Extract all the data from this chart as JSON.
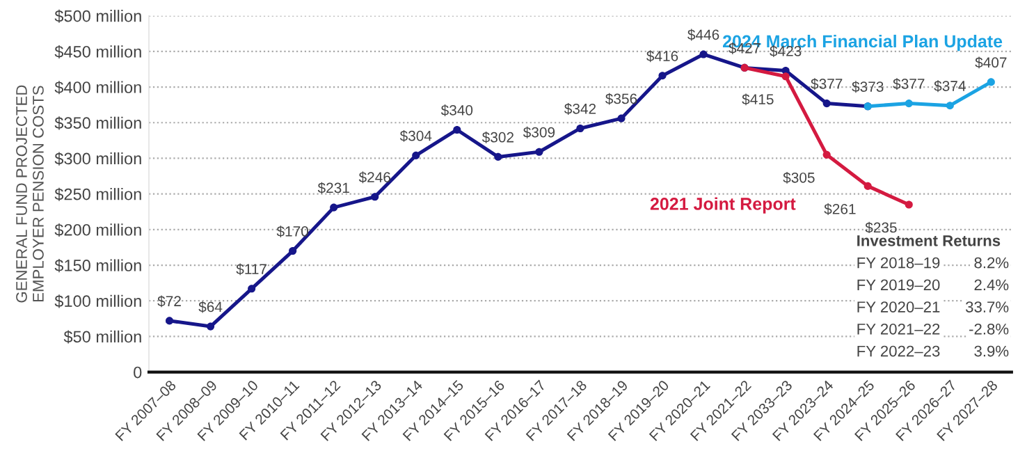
{
  "chart_data": {
    "type": "line",
    "ylabel": "GENERAL FUND PROJECTED\nEMPLOYER PENSION COSTS",
    "categories": [
      "FY 2007–08",
      "FY 2008–09",
      "FY 2009–10",
      "FY 2010–11",
      "FY 2011–12",
      "FY 2012–13",
      "FY 2013–14",
      "FY 2014–15",
      "FY 2015–16",
      "FY 2016–17",
      "FY 2017–18",
      "FY 2018–19",
      "FY 2019–20",
      "FY 2020–21",
      "FY 2021–22",
      "FY 2033–23",
      "FY 2023–24",
      "FY 2024–25",
      "FY 2025–26",
      "FY 2026–27",
      "FY 2027–28"
    ],
    "series": [
      {
        "color": "#16168a",
        "values": [
          72,
          64,
          117,
          170,
          231,
          246,
          304,
          340,
          302,
          309,
          342,
          356,
          416,
          446,
          427,
          423,
          377,
          373,
          null,
          null,
          null
        ],
        "value_labels": [
          "$72",
          "$64",
          "$117",
          "$170",
          "$231",
          "$246",
          "$304",
          "$340",
          "$302",
          "$309",
          "$342",
          "$356",
          "$416",
          "$446",
          "$427",
          "$423",
          "$377",
          null,
          null,
          null,
          null
        ]
      },
      {
        "name": "2021 Joint Report",
        "color": "#d41a40",
        "values": [
          null,
          null,
          null,
          null,
          null,
          null,
          null,
          null,
          null,
          null,
          null,
          null,
          null,
          null,
          427,
          415,
          305,
          261,
          235,
          null,
          null
        ],
        "value_labels": [
          null,
          null,
          null,
          null,
          null,
          null,
          null,
          null,
          null,
          null,
          null,
          null,
          null,
          null,
          null,
          "$415",
          "$305",
          "$261",
          "$235",
          null,
          null
        ]
      },
      {
        "name": "2024 March Financial Plan Update",
        "color": "#1ba3e3",
        "values": [
          null,
          null,
          null,
          null,
          null,
          null,
          null,
          null,
          null,
          null,
          null,
          null,
          null,
          null,
          null,
          null,
          null,
          373,
          377,
          374,
          407
        ],
        "value_labels": [
          null,
          null,
          null,
          null,
          null,
          null,
          null,
          null,
          null,
          null,
          null,
          null,
          null,
          null,
          null,
          null,
          null,
          "$373",
          "$377",
          "$374",
          "$407"
        ]
      }
    ],
    "ylim": [
      0,
      500
    ],
    "yticks": [
      0,
      {
        "value": 50,
        "label": "$50 million"
      },
      {
        "value": 100,
        "label": "$100 million"
      },
      {
        "value": 150,
        "label": "$150 million"
      },
      {
        "value": 200,
        "label": "$200 million"
      },
      {
        "value": 250,
        "label": "$250 million"
      },
      {
        "value": 300,
        "label": "$300 million"
      },
      {
        "value": 350,
        "label": "$350 million"
      },
      {
        "value": 400,
        "label": "$400 million"
      },
      {
        "value": 450,
        "label": "$450 million"
      },
      {
        "value": 500,
        "label": "$500 million"
      }
    ],
    "grid": "y",
    "legend": false,
    "marker": "circle",
    "line_style": "solid",
    "annotations": [
      "Investment Returns",
      "FY 2018–19",
      "8.2%",
      "FY 2019–20",
      "2.4%",
      "FY 2020–21",
      "33.7%",
      "FY 2021–22",
      "-2.8%",
      "FY 2022–23",
      "3.9%"
    ]
  }
}
